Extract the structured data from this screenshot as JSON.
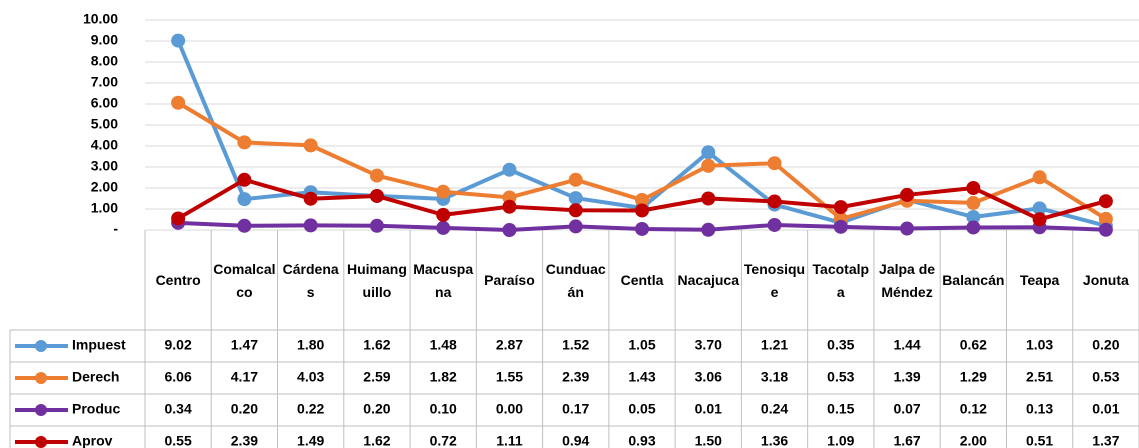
{
  "chart_data": {
    "type": "line",
    "categories": [
      "Centro",
      "Comalcalco",
      "Cárdenas",
      "Huimanguillo",
      "Macuspana",
      "Paraíso",
      "Cunduacán",
      "Centla",
      "Nacajuca",
      "Tenosique",
      "Tacotalpa",
      "Jalpa de Méndez",
      "Balancán",
      "Teapa",
      "Jonuta"
    ],
    "series": [
      {
        "name": "Impuest",
        "color": "#5b9bd5",
        "values": [
          9.02,
          1.47,
          1.8,
          1.62,
          1.48,
          2.87,
          1.52,
          1.05,
          3.7,
          1.21,
          0.35,
          1.44,
          0.62,
          1.03,
          0.2
        ],
        "value_labels": [
          "9.02",
          "1.47",
          "1.80",
          "1.62",
          "1.48",
          "2.87",
          "1.52",
          "1.05",
          "3.70",
          "1.21",
          "0.35",
          "1.44",
          "0.62",
          "1.03",
          "0.20"
        ]
      },
      {
        "name": "Derech",
        "color": "#ed7d31",
        "values": [
          6.06,
          4.17,
          4.03,
          2.59,
          1.82,
          1.55,
          2.39,
          1.43,
          3.06,
          3.18,
          0.53,
          1.39,
          1.29,
          2.51,
          0.53
        ],
        "value_labels": [
          "6.06",
          "4.17",
          "4.03",
          "2.59",
          "1.82",
          "1.55",
          "2.39",
          "1.43",
          "3.06",
          "3.18",
          "0.53",
          "1.39",
          "1.29",
          "2.51",
          "0.53"
        ]
      },
      {
        "name": "Produc",
        "color": "#7030a0",
        "values": [
          0.34,
          0.2,
          0.22,
          0.2,
          0.1,
          0,
          0.17,
          0.05,
          0.01,
          0.24,
          0.15,
          0.07,
          0.12,
          0.13,
          0.01
        ],
        "value_labels": [
          "0.34",
          "0.20",
          "0.22",
          "0.20",
          "0.10",
          "0.00",
          "0.17",
          "0.05",
          "0.01",
          "0.24",
          "0.15",
          "0.07",
          "0.12",
          "0.13",
          "0.01"
        ]
      },
      {
        "name": "Aprov",
        "color": "#c00000",
        "values": [
          0.55,
          2.39,
          1.49,
          1.62,
          0.72,
          1.11,
          0.94,
          0.93,
          1.5,
          1.36,
          1.09,
          1.67,
          2,
          0.51,
          1.37
        ],
        "value_labels": [
          "0.55",
          "2.39",
          "1.49",
          "1.62",
          "0.72",
          "1.11",
          "0.94",
          "0.93",
          "1.50",
          "1.36",
          "1.09",
          "1.67",
          "2.00",
          "0.51",
          "1.37"
        ]
      }
    ],
    "ylim": [
      0,
      10
    ],
    "yticks": [
      {
        "value": 0,
        "label": "-"
      },
      {
        "value": 1,
        "label": "1.00"
      },
      {
        "value": 2,
        "label": "2.00"
      },
      {
        "value": 3,
        "label": "3.00"
      },
      {
        "value": 4,
        "label": "4.00"
      },
      {
        "value": 5,
        "label": "5.00"
      },
      {
        "value": 6,
        "label": "6.00"
      },
      {
        "value": 7,
        "label": "7.00"
      },
      {
        "value": 8,
        "label": "8.00"
      },
      {
        "value": 9,
        "label": "9.00"
      },
      {
        "value": 10,
        "label": "10.00"
      }
    ],
    "grid": true
  }
}
